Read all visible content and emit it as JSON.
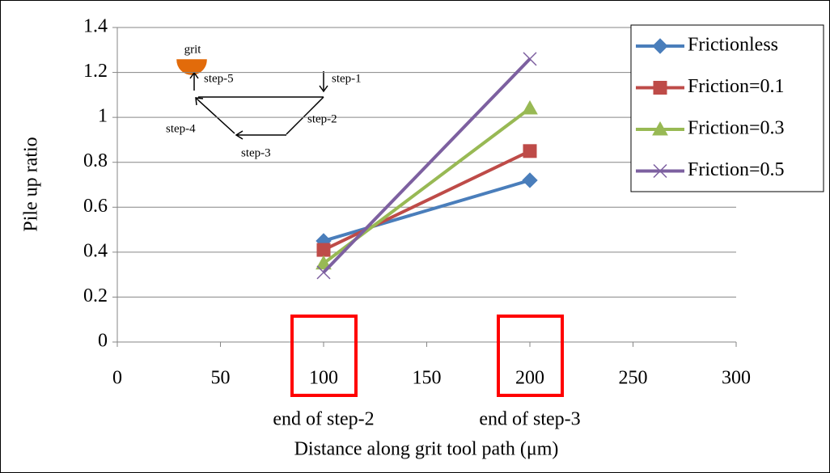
{
  "chart_data": {
    "type": "line",
    "x_label": "Distance along grit tool path (μm)",
    "y_label": "Pile up ratio",
    "x": [
      100,
      200
    ],
    "series": [
      {
        "name": "Frictionless",
        "color": "#4a7ebb",
        "marker": "diamond",
        "values": [
          0.45,
          0.72
        ]
      },
      {
        "name": "Friction=0.1",
        "color": "#be4b48",
        "marker": "square",
        "values": [
          0.41,
          0.85
        ]
      },
      {
        "name": "Friction=0.3",
        "color": "#98b954",
        "marker": "triangle",
        "values": [
          0.35,
          1.04
        ]
      },
      {
        "name": "Friction=0.5",
        "color": "#7d60a0",
        "marker": "x",
        "values": [
          0.31,
          1.26
        ]
      }
    ],
    "xlim": [
      0,
      300
    ],
    "xticks": [
      0,
      50,
      100,
      150,
      200,
      250,
      300
    ],
    "ylim": [
      0,
      1.4
    ],
    "yticks": [
      0,
      0.2,
      0.4,
      0.6,
      0.8,
      1,
      1.2,
      1.4
    ],
    "grid": true,
    "legend": "top-right",
    "x_annotations": [
      {
        "x": 100,
        "text": "end of step-2"
      },
      {
        "x": 200,
        "text": "end of step-3"
      }
    ],
    "inset_labels": [
      "grit",
      "step-1",
      "step-2",
      "step-3",
      "step-4",
      "step-5"
    ]
  }
}
